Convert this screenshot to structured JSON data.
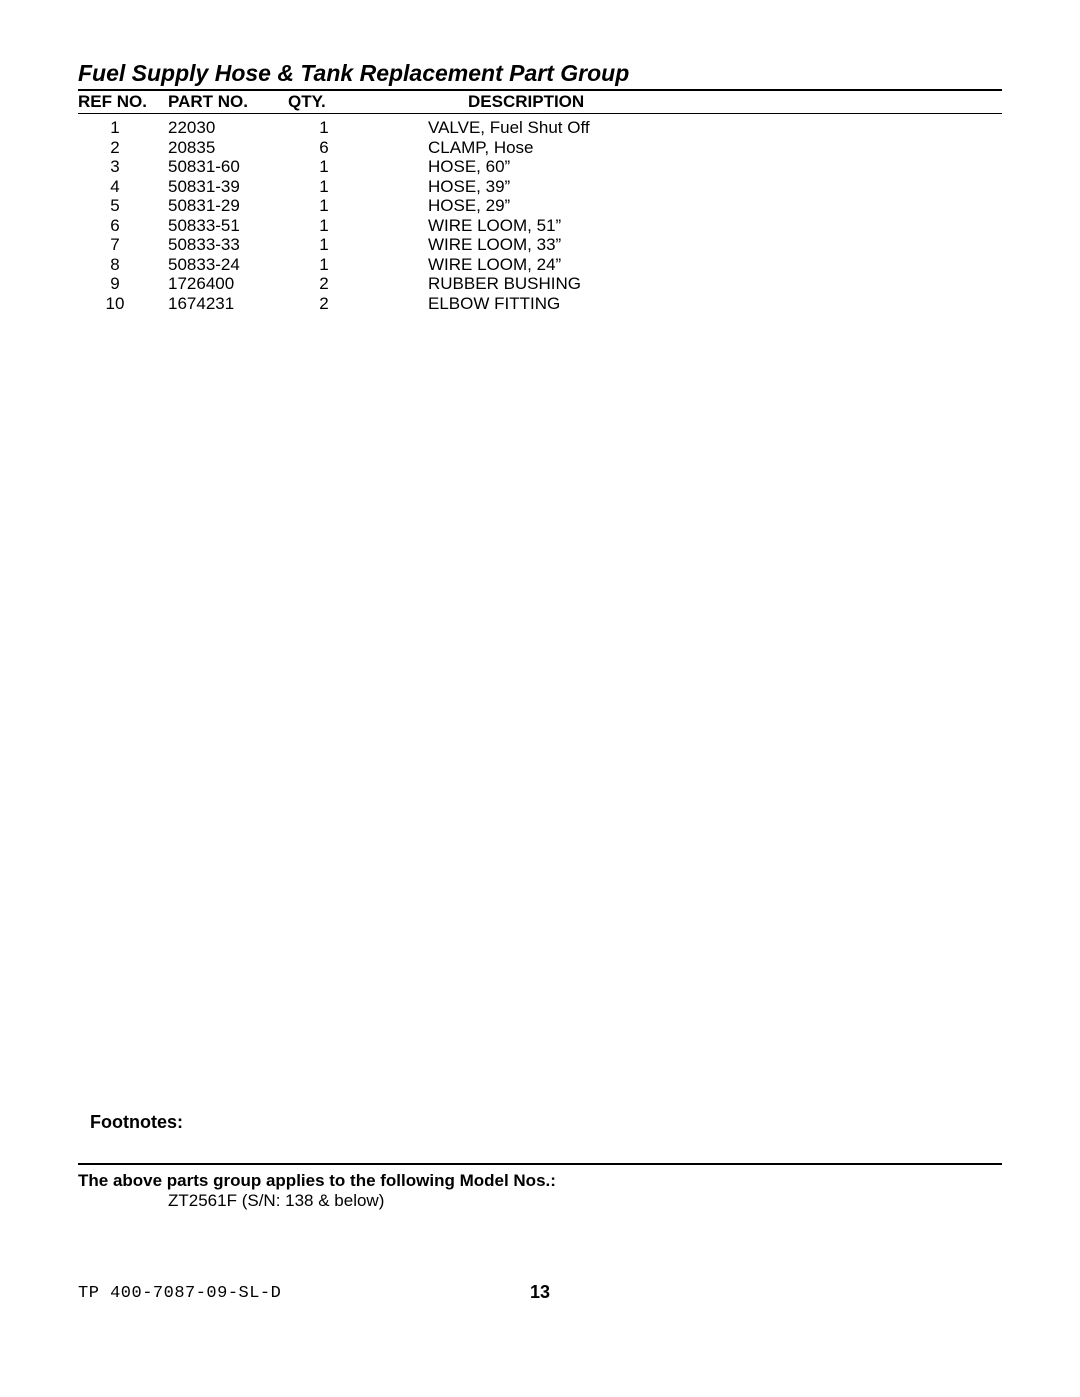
{
  "title": "Fuel Supply Hose & Tank Replacement Part Group",
  "table": {
    "headers": {
      "ref": "Ref No.",
      "part": "Part No.",
      "qty": "Qty.",
      "desc": "Description"
    },
    "rows": [
      {
        "ref": "1",
        "part": "22030",
        "qty": "1",
        "desc": "VALVE, Fuel Shut Off"
      },
      {
        "ref": "2",
        "part": "20835",
        "qty": "6",
        "desc": "CLAMP, Hose"
      },
      {
        "ref": "3",
        "part": "50831-60",
        "qty": "1",
        "desc": "HOSE, 60”"
      },
      {
        "ref": "4",
        "part": "50831-39",
        "qty": "1",
        "desc": "HOSE, 39”"
      },
      {
        "ref": "5",
        "part": "50831-29",
        "qty": "1",
        "desc": "HOSE, 29”"
      },
      {
        "ref": "6",
        "part": "50833-51",
        "qty": "1",
        "desc": "WIRE LOOM, 51”"
      },
      {
        "ref": "7",
        "part": "50833-33",
        "qty": "1",
        "desc": "WIRE LOOM, 33”"
      },
      {
        "ref": "8",
        "part": "50833-24",
        "qty": "1",
        "desc": "WIRE LOOM, 24”"
      },
      {
        "ref": "9",
        "part": "1726400",
        "qty": "2",
        "desc": "RUBBER BUSHING"
      },
      {
        "ref": "10",
        "part": "1674231",
        "qty": "2",
        "desc": "ELBOW FITTING"
      }
    ]
  },
  "footnotes_label": "Footnotes:",
  "models_label": "The above parts group applies to the following Model Nos.:",
  "models_value": "ZT2561F  (S/N: 138 & below)",
  "doc_number": "TP 400-7087-09-SL-D",
  "page_number": "13"
}
